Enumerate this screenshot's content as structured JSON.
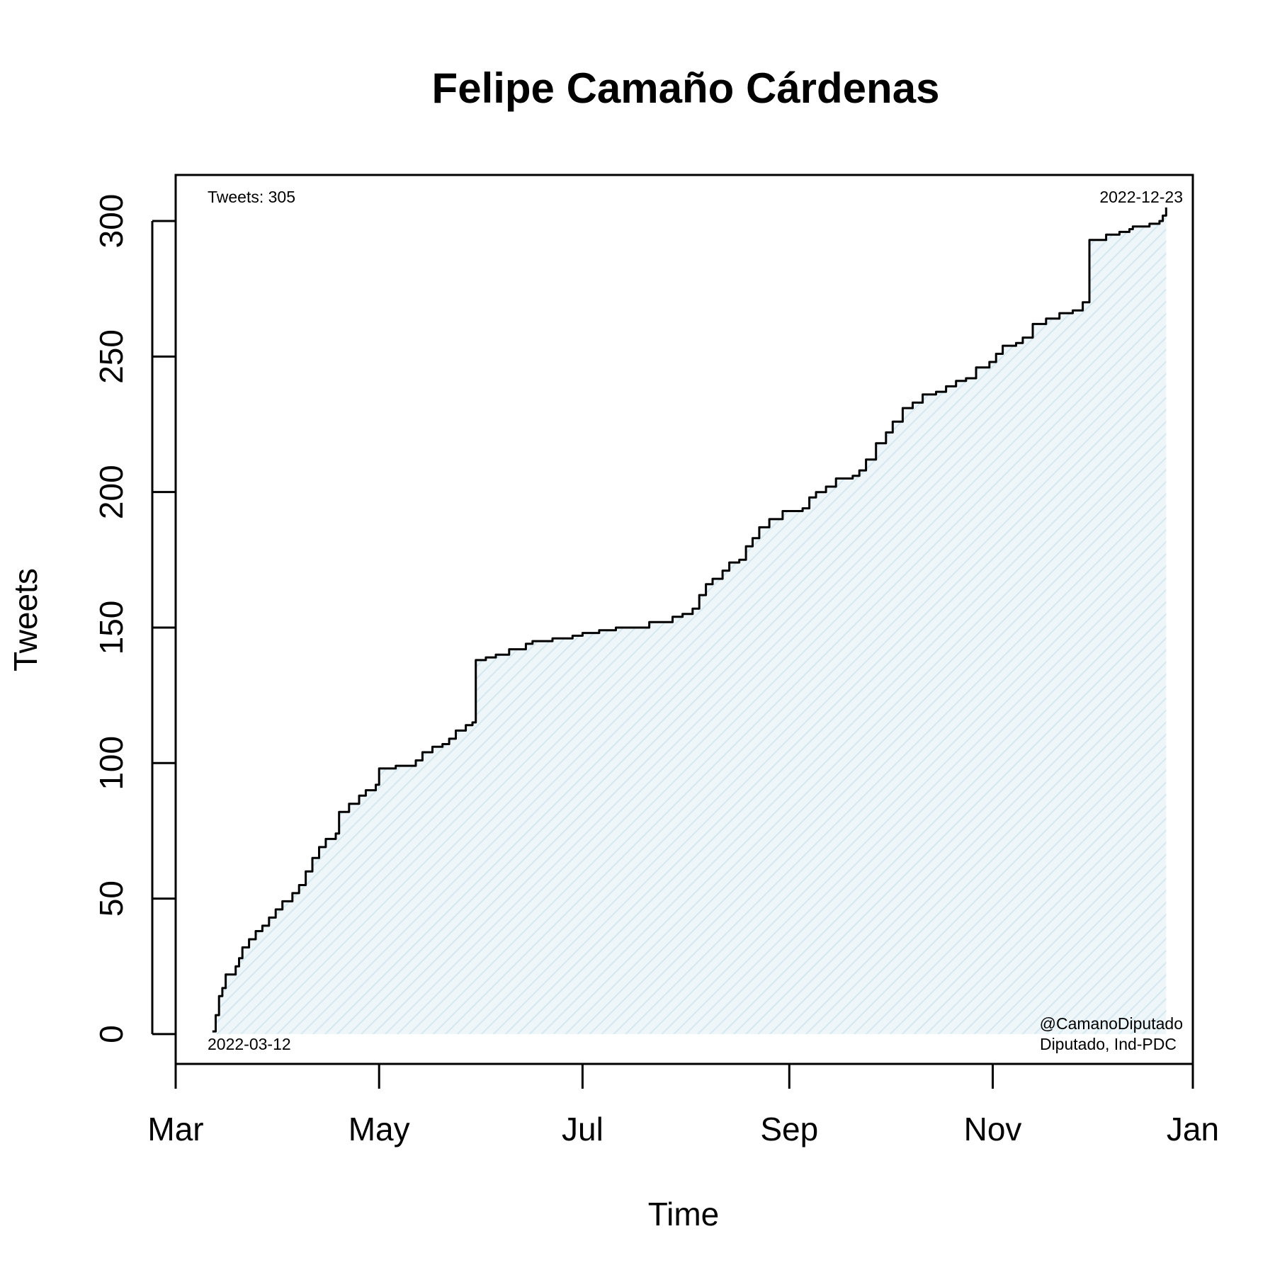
{
  "chart_data": {
    "type": "area",
    "title": "Felipe Camaño Cárdenas",
    "xlabel": "Time",
    "ylabel": "Tweets",
    "xlim": [
      "2022-03-01",
      "2022-12-31"
    ],
    "ylim": [
      -11,
      317
    ],
    "x_ticks": [
      {
        "date": "2022-03-01",
        "label": "Mar"
      },
      {
        "date": "2022-05-01",
        "label": "May"
      },
      {
        "date": "2022-07-01",
        "label": "Jul"
      },
      {
        "date": "2022-09-01",
        "label": "Sep"
      },
      {
        "date": "2022-11-01",
        "label": "Nov"
      },
      {
        "date": "2022-12-31",
        "label": "Jan"
      }
    ],
    "y_ticks": [
      0,
      50,
      100,
      150,
      200,
      250,
      300
    ],
    "fill_color": "#dcecf2",
    "line_color": "#000000",
    "grid": false,
    "annotations": {
      "total": "Tweets: 305",
      "start_date": "2022-03-12",
      "end_date": "2022-12-23",
      "handle": "@CamanoDiputado",
      "role": "Diputado, Ind-PDC"
    },
    "points": [
      [
        "2022-03-12",
        1
      ],
      [
        "2022-03-13",
        7
      ],
      [
        "2022-03-14",
        14
      ],
      [
        "2022-03-15",
        17
      ],
      [
        "2022-03-16",
        22
      ],
      [
        "2022-03-19",
        25
      ],
      [
        "2022-03-20",
        28
      ],
      [
        "2022-03-21",
        32
      ],
      [
        "2022-03-23",
        35
      ],
      [
        "2022-03-25",
        38
      ],
      [
        "2022-03-27",
        40
      ],
      [
        "2022-03-29",
        43
      ],
      [
        "2022-03-31",
        46
      ],
      [
        "2022-04-02",
        49
      ],
      [
        "2022-04-05",
        52
      ],
      [
        "2022-04-07",
        55
      ],
      [
        "2022-04-09",
        60
      ],
      [
        "2022-04-11",
        65
      ],
      [
        "2022-04-13",
        69
      ],
      [
        "2022-04-15",
        72
      ],
      [
        "2022-04-18",
        74
      ],
      [
        "2022-04-19",
        82
      ],
      [
        "2022-04-22",
        85
      ],
      [
        "2022-04-25",
        88
      ],
      [
        "2022-04-27",
        90
      ],
      [
        "2022-04-30",
        92
      ],
      [
        "2022-05-01",
        98
      ],
      [
        "2022-05-06",
        99
      ],
      [
        "2022-05-12",
        101
      ],
      [
        "2022-05-14",
        104
      ],
      [
        "2022-05-17",
        106
      ],
      [
        "2022-05-20",
        107
      ],
      [
        "2022-05-22",
        109
      ],
      [
        "2022-05-24",
        112
      ],
      [
        "2022-05-27",
        114
      ],
      [
        "2022-05-29",
        115
      ],
      [
        "2022-05-30",
        138
      ],
      [
        "2022-06-02",
        139
      ],
      [
        "2022-06-05",
        140
      ],
      [
        "2022-06-09",
        142
      ],
      [
        "2022-06-14",
        144
      ],
      [
        "2022-06-16",
        145
      ],
      [
        "2022-06-22",
        146
      ],
      [
        "2022-06-28",
        147
      ],
      [
        "2022-07-01",
        148
      ],
      [
        "2022-07-06",
        149
      ],
      [
        "2022-07-11",
        150
      ],
      [
        "2022-07-18",
        150
      ],
      [
        "2022-07-21",
        152
      ],
      [
        "2022-07-28",
        154
      ],
      [
        "2022-07-31",
        155
      ],
      [
        "2022-08-03",
        157
      ],
      [
        "2022-08-05",
        162
      ],
      [
        "2022-08-07",
        166
      ],
      [
        "2022-08-09",
        168
      ],
      [
        "2022-08-12",
        171
      ],
      [
        "2022-08-14",
        174
      ],
      [
        "2022-08-17",
        175
      ],
      [
        "2022-08-19",
        180
      ],
      [
        "2022-08-21",
        183
      ],
      [
        "2022-08-23",
        187
      ],
      [
        "2022-08-26",
        190
      ],
      [
        "2022-08-30",
        193
      ],
      [
        "2022-09-05",
        194
      ],
      [
        "2022-09-07",
        198
      ],
      [
        "2022-09-09",
        200
      ],
      [
        "2022-09-12",
        202
      ],
      [
        "2022-09-15",
        205
      ],
      [
        "2022-09-20",
        206
      ],
      [
        "2022-09-22",
        208
      ],
      [
        "2022-09-24",
        212
      ],
      [
        "2022-09-27",
        218
      ],
      [
        "2022-09-30",
        222
      ],
      [
        "2022-10-02",
        226
      ],
      [
        "2022-10-05",
        231
      ],
      [
        "2022-10-08",
        233
      ],
      [
        "2022-10-11",
        236
      ],
      [
        "2022-10-15",
        237
      ],
      [
        "2022-10-18",
        239
      ],
      [
        "2022-10-21",
        241
      ],
      [
        "2022-10-24",
        242
      ],
      [
        "2022-10-27",
        246
      ],
      [
        "2022-10-31",
        248
      ],
      [
        "2022-11-02",
        251
      ],
      [
        "2022-11-04",
        254
      ],
      [
        "2022-11-08",
        255
      ],
      [
        "2022-11-10",
        257
      ],
      [
        "2022-11-13",
        262
      ],
      [
        "2022-11-17",
        264
      ],
      [
        "2022-11-21",
        266
      ],
      [
        "2022-11-25",
        267
      ],
      [
        "2022-11-28",
        270
      ],
      [
        "2022-12-01",
        273
      ],
      [
        "2022-12-05",
        274
      ],
      [
        "2022-12-08",
        277
      ],
      [
        "2022-12-13",
        278
      ],
      [
        "2022-12-15",
        281
      ],
      [
        "2022-12-17",
        284
      ],
      [
        "2022-12-21",
        285
      ],
      [
        "2022-12-22",
        290
      ],
      [
        "2022-12-23",
        293
      ],
      [
        "2022-11-30",
        293
      ],
      [
        "2022-12-05",
        295
      ],
      [
        "2022-12-09",
        296
      ],
      [
        "2022-12-12",
        297
      ],
      [
        "2022-12-13",
        298
      ],
      [
        "2022-12-18",
        299
      ],
      [
        "2022-12-21",
        300
      ],
      [
        "2022-12-22",
        302
      ],
      [
        "2022-12-23",
        305
      ]
    ]
  }
}
